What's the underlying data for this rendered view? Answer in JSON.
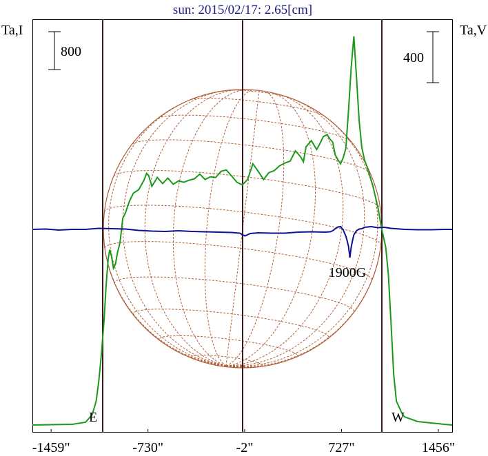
{
  "chart_data": {
    "type": "line",
    "title": "sun: 2015/02/17: 2.65[cm]",
    "left_axis_label": "Ta,I",
    "right_axis_label": "Ta,V",
    "left_scale_bar": "800",
    "right_scale_bar": "400",
    "x_unit": "arcsec",
    "xlim": [
      -1600,
      1560
    ],
    "x_tick_labels": [
      "-1459\"",
      "-730\"",
      "-2\"",
      "727\"",
      "1456\""
    ],
    "x_ticks": [
      -1459,
      -730,
      -2,
      727,
      1456
    ],
    "limb_labels": {
      "east": "E",
      "west": "W"
    },
    "limb_x": [
      -1050,
      1050
    ],
    "annotation": "1900G",
    "annotation_x": 790,
    "series": [
      {
        "key": "I",
        "color": "#1a9a1a",
        "x": [
          -1600,
          -1300,
          -1200,
          -1150,
          -1120,
          -1100,
          -1080,
          -1060,
          -1045,
          -1030,
          -1018,
          -1005,
          -990,
          -975,
          -960,
          -940,
          -920,
          -900,
          -870,
          -840,
          -800,
          -760,
          -740,
          -725,
          -700,
          -660,
          -620,
          -580,
          -540,
          -500,
          -460,
          -420,
          -380,
          -340,
          -300,
          -260,
          -220,
          -180,
          -140,
          -100,
          -60,
          -20,
          20,
          60,
          100,
          140,
          180,
          220,
          260,
          300,
          340,
          380,
          420,
          440,
          460,
          500,
          540,
          560,
          590,
          620,
          640,
          660,
          680,
          700,
          720,
          740,
          760,
          780,
          800,
          820,
          840,
          860,
          880,
          900,
          920,
          960,
          1000,
          1030,
          1060,
          1080,
          1100,
          1120,
          1140,
          1180,
          1200,
          1300,
          1400,
          1500,
          1560
        ],
        "y": [
          0.0,
          0.1,
          0.4,
          1.5,
          3.5,
          6.5,
          10.5,
          15.5,
          20.5,
          24.3,
          25.7,
          24.8,
          23.0,
          23.6,
          25.2,
          26.8,
          30.3,
          31.1,
          32.8,
          34.0,
          34.5,
          35.9,
          36.9,
          36.6,
          35.0,
          36.3,
          35.4,
          36.2,
          35.3,
          35.8,
          35.6,
          35.9,
          36.1,
          36.8,
          36.0,
          36.4,
          36.3,
          37.2,
          37.4,
          36.5,
          35.6,
          35.2,
          36.0,
          38.3,
          37.2,
          36.0,
          37.0,
          37.3,
          38.0,
          38.4,
          38.7,
          40.2,
          39.3,
          38.6,
          40.8,
          41.7,
          40.4,
          41.1,
          42.3,
          42.6,
          41.9,
          41.5,
          39.6,
          38.9,
          38.3,
          39.2,
          40.6,
          46.2,
          52.4,
          57.0,
          51.0,
          44.6,
          40.7,
          38.9,
          37.8,
          35.3,
          32.0,
          28.7,
          26.1,
          22.0,
          15.0,
          7.4,
          3.5,
          1.8,
          1.2,
          0.5,
          0.3,
          0.1,
          0.0
        ]
      },
      {
        "key": "V",
        "color": "#101090",
        "x": [
          -1600,
          -1500,
          -1400,
          -1300,
          -1200,
          -1100,
          -1000,
          -900,
          -800,
          -700,
          -600,
          -500,
          -400,
          -300,
          -200,
          -100,
          -40,
          0,
          40,
          100,
          200,
          300,
          400,
          500,
          600,
          640,
          660,
          680,
          700,
          720,
          740,
          760,
          770,
          780,
          790,
          800,
          810,
          820,
          840,
          860,
          880,
          900,
          950,
          1000,
          1050,
          1100,
          1200,
          1300,
          1400,
          1500,
          1560
        ],
        "y": [
          0.0,
          0.05,
          -0.1,
          0.0,
          0.0,
          0.15,
          0.1,
          0.05,
          -0.15,
          -0.25,
          -0.3,
          -0.2,
          -0.3,
          -0.35,
          -0.4,
          -0.45,
          -0.55,
          -0.95,
          -0.6,
          -0.5,
          -0.55,
          -0.55,
          -0.4,
          -0.35,
          -0.4,
          -0.35,
          -0.2,
          0.1,
          0.35,
          0.4,
          -0.1,
          -1.0,
          -1.7,
          -2.5,
          -4.1,
          -2.6,
          -1.6,
          -0.8,
          -0.2,
          0.05,
          0.1,
          0.3,
          0.4,
          0.25,
          0.3,
          0.15,
          0.0,
          -0.05,
          -0.05,
          0.0,
          0.0
        ]
      }
    ]
  }
}
